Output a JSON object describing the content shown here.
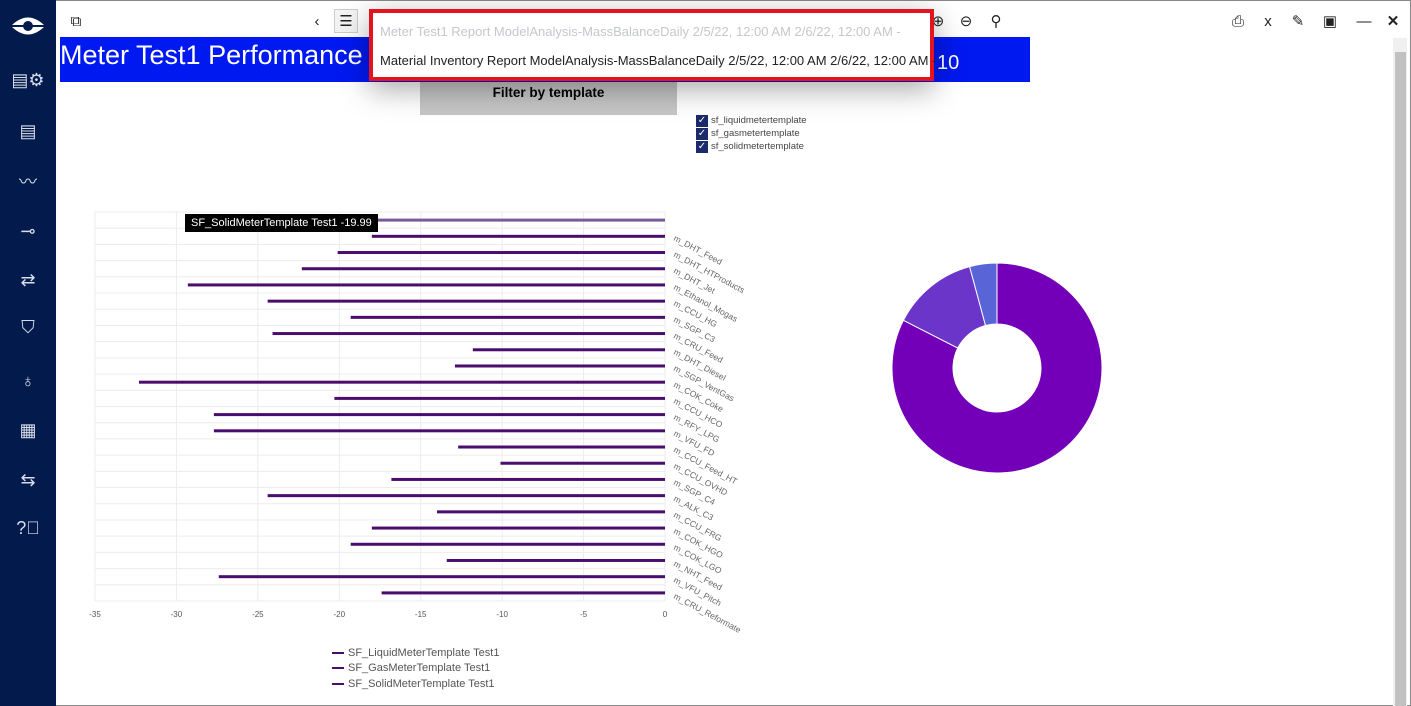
{
  "sidebar": {
    "items": [
      {
        "icon": "logo-eye-icon"
      },
      {
        "icon": "report-settings-icon"
      },
      {
        "icon": "list-report-icon"
      },
      {
        "icon": "trend-icon"
      },
      {
        "icon": "flow-arrow-icon"
      },
      {
        "icon": "compare-arrows-icon"
      },
      {
        "icon": "shield-unlock-icon"
      },
      {
        "icon": "stethoscope-icon"
      },
      {
        "icon": "presentation-chart-icon"
      },
      {
        "icon": "sync-icon"
      },
      {
        "icon": "help-icon"
      }
    ]
  },
  "toolbar": {
    "left": [
      "pages-icon"
    ],
    "nav": [
      "chevron-left-icon",
      "list-icon"
    ],
    "zoom": [
      "zoom-in-icon",
      "zoom-out-icon",
      "search-icon"
    ],
    "right": [
      "print-icon",
      "excel-export-icon",
      "edit-icon",
      "window-icon",
      "minimize-icon",
      "close-icon"
    ]
  },
  "header": {
    "title": "Meter Test1 Performance",
    "title_suffix": "10",
    "color": "#0019f0"
  },
  "dropdown": {
    "options": [
      "Meter Test1 Report ModelAnalysis-MassBalanceDaily 2/5/22, 12:00 AM 2/6/22, 12:00 AM -",
      "Material Inventory Report ModelAnalysis-MassBalanceDaily 2/5/22, 12:00 AM 2/6/22, 12:00 AM -"
    ],
    "highlight_color": "#e3141e"
  },
  "filter": {
    "button_label": "Filter by template",
    "checkboxes": [
      {
        "label": "sf_liquidmetertemplate",
        "checked": true
      },
      {
        "label": "sf_gasmetertemplate",
        "checked": true
      },
      {
        "label": "sf_solidmetertemplate",
        "checked": true
      }
    ]
  },
  "tooltip": "SF_SolidMeterTemplate Test1 -19.99",
  "chart_data": [
    {
      "type": "bar",
      "orientation": "horizontal",
      "xlim": [
        -35,
        0
      ],
      "xticks": [
        "-35",
        "-30",
        "-25",
        "-20",
        "-15",
        "-10",
        "-5",
        "0"
      ],
      "grid": true,
      "bar_color": "#4a0d6e",
      "categories": [
        "m_DHT_Feed",
        "m_DHT_HTProducts",
        "m_DHT_Jet",
        "m_Ethanol_Mogas",
        "m_CCU_HG",
        "m_SGP_C3",
        "m_CRU_Feed",
        "m_DHT_Diesel",
        "m_SGP_VentGas",
        "m_COK_Coke",
        "m_CCU_HCO",
        "m_RFY_LPG",
        "m_VFU_FD",
        "m_CCU_Feed_HT",
        "m_CCU_OVHD",
        "m_SGP_C4",
        "m_ALK_C3",
        "m_CCU_FRG",
        "m_COK_HGO",
        "m_COK_LGO",
        "m_NHT_Feed",
        "m_VFU_Pitch",
        "m_CRU_Reformate",
        "m_COK_OVHD"
      ],
      "values": [
        -19.99,
        -18,
        -20.1,
        -22.3,
        -29.3,
        -24.4,
        -19.3,
        -24.1,
        -11.8,
        -12.9,
        -32.3,
        -20.3,
        -27.7,
        -27.7,
        -12.7,
        -10.1,
        -16.8,
        -24.4,
        -14.0,
        -18.0,
        -19.3,
        -13.4,
        -27.4,
        -17.4
      ],
      "legend": [
        "SF_LiquidMeterTemplate Test1",
        "SF_GasMeterTemplate Test1",
        "SF_SolidMeterTemplate Test1"
      ],
      "legend_placement": "bottom"
    },
    {
      "type": "pie",
      "donut": true,
      "values": [
        82.5,
        13.3,
        4.2
      ],
      "colors": [
        "#7300b8",
        "#6a35c8",
        "#5964d6"
      ]
    }
  ]
}
